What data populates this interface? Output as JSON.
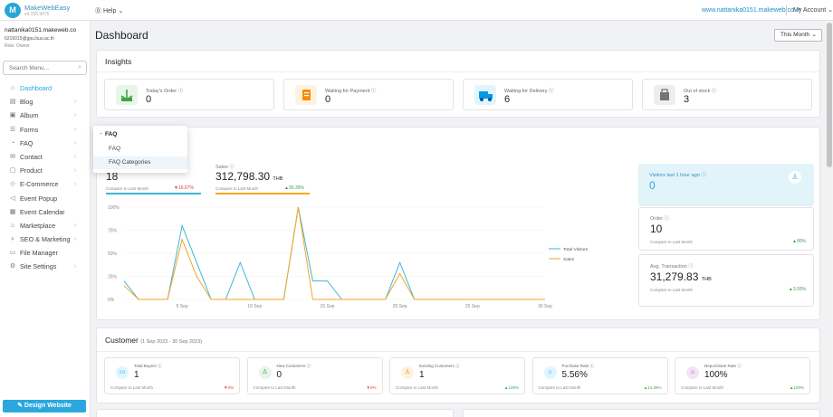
{
  "topbar": {
    "brand_name": "MakeWebEasy",
    "brand_version": "v4.155.9075",
    "help_label": "Help",
    "site_link": "www.nattanika0151.makeweb.co",
    "account_label": "My Account"
  },
  "user": {
    "name": "nattanika0151.makeweb.co",
    "email": "6216015@gpu.buu.ac.th",
    "role": "Role: Owner"
  },
  "sidebar": {
    "search_placeholder": "Search Menu...",
    "items": [
      {
        "label": "Dashboard",
        "icon": "home-icon"
      },
      {
        "label": "Blog",
        "icon": "document-icon"
      },
      {
        "label": "Album",
        "icon": "image-icon"
      },
      {
        "label": "Forms",
        "icon": "list-icon"
      },
      {
        "label": "FAQ",
        "icon": "faq-icon"
      },
      {
        "label": "Contact",
        "icon": "mail-icon"
      },
      {
        "label": "Product",
        "icon": "box-icon"
      },
      {
        "label": "E-Commerce",
        "icon": "tag-icon"
      },
      {
        "label": "Event Popup",
        "icon": "megaphone-icon"
      },
      {
        "label": "Event Calendar",
        "icon": "calendar-icon"
      },
      {
        "label": "Marketplace",
        "icon": "store-icon"
      },
      {
        "label": "SEO & Marketing",
        "icon": "search-icon"
      },
      {
        "label": "File Manager",
        "icon": "folder-icon"
      },
      {
        "label": "Site Settings",
        "icon": "gear-icon"
      }
    ],
    "design_button": "Design Website"
  },
  "page": {
    "title": "Dashboard",
    "period": "This Month"
  },
  "insights": {
    "title": "Insights",
    "items": [
      {
        "label": "Today's Order",
        "value": "0",
        "color": "#e8f5e9",
        "fg": "#43a047"
      },
      {
        "label": "Waiting for Payment",
        "value": "0",
        "color": "#fff3e0",
        "fg": "#fb8c00"
      },
      {
        "label": "Waiting for Delivery",
        "value": "6",
        "color": "#e1f5fe",
        "fg": "#039be5"
      },
      {
        "label": "Out of stock",
        "value": "3",
        "color": "#eeeeee",
        "fg": "#757575"
      }
    ]
  },
  "sales_panel": {
    "visitors_value": "18",
    "visitors_compare": "Compare to Last Month",
    "visitors_pct": "16.67%",
    "sales_label": "Sales",
    "sales_value": "312,798.30",
    "sales_currency": "THB",
    "sales_compare": "Compare to Last Month",
    "sales_pct": "90.39%",
    "visitors_last_hour_label": "Visitors last 1 hour ago",
    "visitors_last_hour_value": "0",
    "order_label": "Order",
    "order_value": "10",
    "order_compare": "Compare to Last Month",
    "order_pct": "90%",
    "avg_label": "Avg. Transaction",
    "avg_value": "31,279.83",
    "avg_currency": "THB",
    "avg_compare": "Compare to Last Month",
    "avg_pct": "3.93%"
  },
  "chart_data": {
    "type": "line",
    "x": [
      "1 Sep",
      "2 Sep",
      "3 Sep",
      "4 Sep",
      "5 Sep",
      "6 Sep",
      "7 Sep",
      "8 Sep",
      "9 Sep",
      "10 Sep",
      "11 Sep",
      "12 Sep",
      "13 Sep",
      "14 Sep",
      "15 Sep",
      "16 Sep",
      "17 Sep",
      "18 Sep",
      "19 Sep",
      "20 Sep",
      "21 Sep",
      "22 Sep",
      "23 Sep",
      "24 Sep",
      "25 Sep",
      "26 Sep",
      "27 Sep",
      "28 Sep",
      "29 Sep",
      "30 Sep"
    ],
    "x_ticks": [
      "5 Sep",
      "10 Sep",
      "15 Sep",
      "20 Sep",
      "25 Sep",
      "30 Sep"
    ],
    "y_ticks": [
      "0%",
      "25%",
      "50%",
      "75%",
      "100%"
    ],
    "ylim": [
      0,
      100
    ],
    "series": [
      {
        "name": "Total Visitors",
        "color": "#3fb6d4",
        "values": [
          20,
          0,
          0,
          0,
          80,
          40,
          0,
          0,
          40,
          0,
          0,
          0,
          100,
          20,
          20,
          0,
          0,
          0,
          0,
          40,
          0,
          0,
          0,
          0,
          0,
          0,
          0,
          0,
          0,
          0
        ]
      },
      {
        "name": "Sales",
        "color": "#f5a623",
        "values": [
          15,
          0,
          0,
          0,
          65,
          25,
          0,
          0,
          0,
          0,
          0,
          0,
          100,
          0,
          0,
          0,
          0,
          0,
          0,
          28,
          0,
          0,
          0,
          0,
          0,
          0,
          0,
          0,
          0,
          0
        ]
      }
    ]
  },
  "customer": {
    "title": "Customer",
    "range": "(1 Sep 2023 - 30 Sep 2023)",
    "items": [
      {
        "label": "Total Buyers",
        "value": "1",
        "compare": "Compare to Last Month",
        "pct": "0%",
        "dir": "down",
        "color": "#e1f5fe",
        "fg": "#039be5"
      },
      {
        "label": "New Customers",
        "value": "0",
        "compare": "Compare to Last Month",
        "pct": "0%",
        "dir": "down",
        "color": "#e8f5e9",
        "fg": "#43a047"
      },
      {
        "label": "Existing Customers",
        "value": "1",
        "compare": "Compare to Last Month",
        "pct": "100%",
        "dir": "up",
        "color": "#fff3e0",
        "fg": "#fb8c00"
      },
      {
        "label": "Purchase Rate",
        "value": "5.56%",
        "compare": "Compare to Last Month",
        "pct": "14.39%",
        "dir": "up",
        "color": "#e1f5fe",
        "fg": "#039be5"
      },
      {
        "label": "Repurchase Rate",
        "value": "100%",
        "compare": "Compare to Last Month",
        "pct": "100%",
        "dir": "up",
        "color": "#f3e5f5",
        "fg": "#8e24aa"
      }
    ]
  },
  "faq_popup": {
    "header": "FAQ",
    "options": [
      "FAQ",
      "FAQ Categories"
    ]
  }
}
